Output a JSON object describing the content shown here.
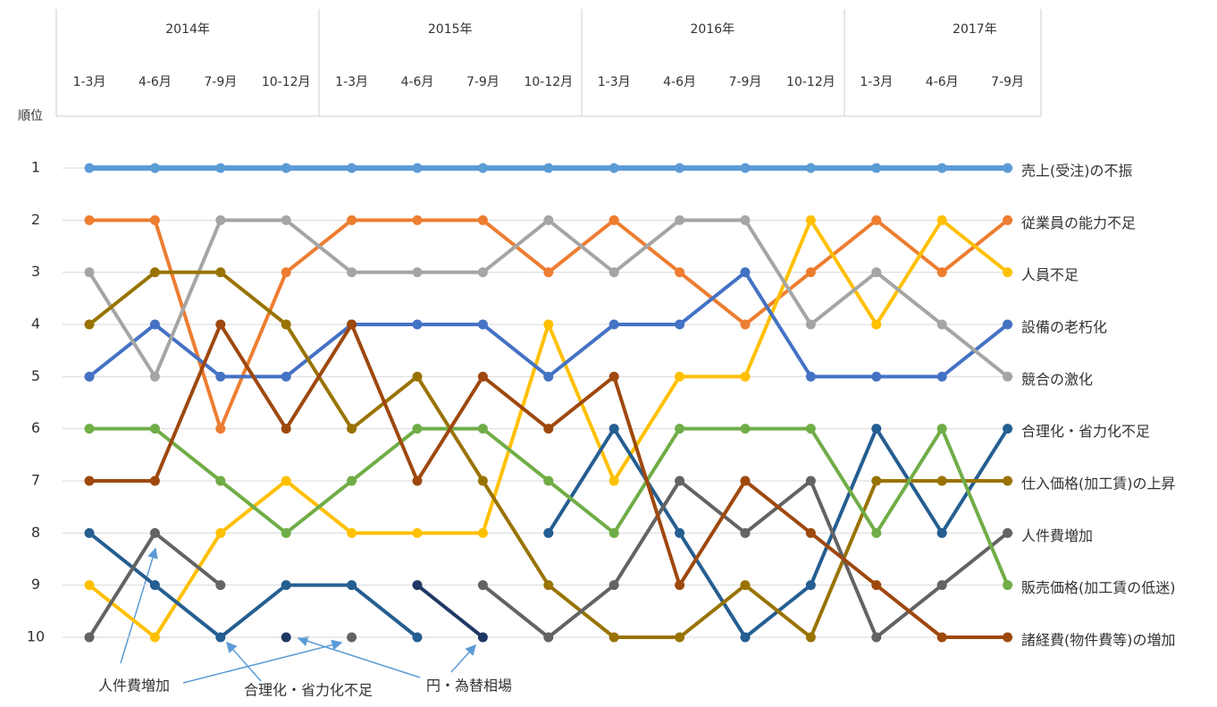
{
  "chart_data": {
    "type": "bump",
    "y_label": "順位",
    "years": [
      "2014年",
      "2015年",
      "2016年",
      "2017年"
    ],
    "categories": [
      "1-3月",
      "4-6月",
      "7-9月",
      "10-12月",
      "1-3月",
      "4-6月",
      "7-9月",
      "10-12月",
      "1-3月",
      "4-6月",
      "7-9月",
      "10-12月",
      "1-3月",
      "4-6月",
      "7-9月"
    ],
    "ylim": [
      1,
      10
    ],
    "y_inverted": true,
    "yticks": [
      1,
      2,
      3,
      4,
      5,
      6,
      7,
      8,
      9,
      10
    ],
    "grid": true,
    "series": [
      {
        "name": "売上(受注)の不振",
        "color": "#5b9bd5",
        "values": [
          1,
          1,
          1,
          1,
          1,
          1,
          1,
          1,
          1,
          1,
          1,
          1,
          1,
          1,
          1
        ]
      },
      {
        "name": "従業員の能力不足",
        "color": "#ed7d31",
        "values": [
          2,
          2,
          6,
          3,
          2,
          2,
          2,
          3,
          2,
          3,
          4,
          3,
          2,
          3,
          2
        ]
      },
      {
        "name": "人員不足",
        "color": "#ffc000",
        "values": [
          9,
          10,
          8,
          7,
          8,
          8,
          8,
          4,
          7,
          5,
          5,
          2,
          4,
          2,
          3
        ]
      },
      {
        "name": "設備の老朽化",
        "color": "#4472c4",
        "values": [
          5,
          4,
          5,
          5,
          4,
          4,
          4,
          5,
          4,
          4,
          3,
          5,
          5,
          5,
          4
        ]
      },
      {
        "name": "競合の激化",
        "color": "#a5a5a5",
        "values": [
          3,
          5,
          2,
          2,
          3,
          3,
          3,
          2,
          3,
          2,
          2,
          4,
          3,
          4,
          5
        ]
      },
      {
        "name": "合理化・省力化不足",
        "color": "#255e91",
        "values": [
          8,
          9,
          10,
          9,
          9,
          10,
          null,
          8,
          6,
          8,
          10,
          9,
          6,
          8,
          6
        ]
      },
      {
        "name": "仕入価格(加工賃)の上昇",
        "color": "#997300",
        "values": [
          4,
          3,
          3,
          4,
          6,
          5,
          7,
          9,
          10,
          10,
          9,
          10,
          7,
          7,
          7
        ]
      },
      {
        "name": "人件費増加",
        "color": "#636363",
        "values": [
          10,
          8,
          9,
          null,
          10,
          null,
          9,
          10,
          9,
          7,
          8,
          7,
          10,
          9,
          8
        ]
      },
      {
        "name": "販売価格(加工賃の低迷)",
        "color": "#70ad47",
        "values": [
          6,
          6,
          7,
          8,
          7,
          6,
          6,
          7,
          8,
          6,
          6,
          6,
          8,
          6,
          9
        ]
      },
      {
        "name": "諸経費(物件費等)の増加",
        "color": "#9e480e",
        "values": [
          7,
          7,
          4,
          6,
          4,
          7,
          5,
          6,
          5,
          9,
          7,
          8,
          9,
          10,
          10
        ]
      },
      {
        "name": "円・為替相場",
        "color": "#1f3864",
        "end_label": false,
        "values": [
          null,
          null,
          null,
          10,
          null,
          9,
          10,
          null,
          null,
          null,
          null,
          null,
          null,
          null,
          null
        ]
      }
    ],
    "annotations": [
      "人件費増加",
      "合理化・省力化不足"
    ]
  }
}
